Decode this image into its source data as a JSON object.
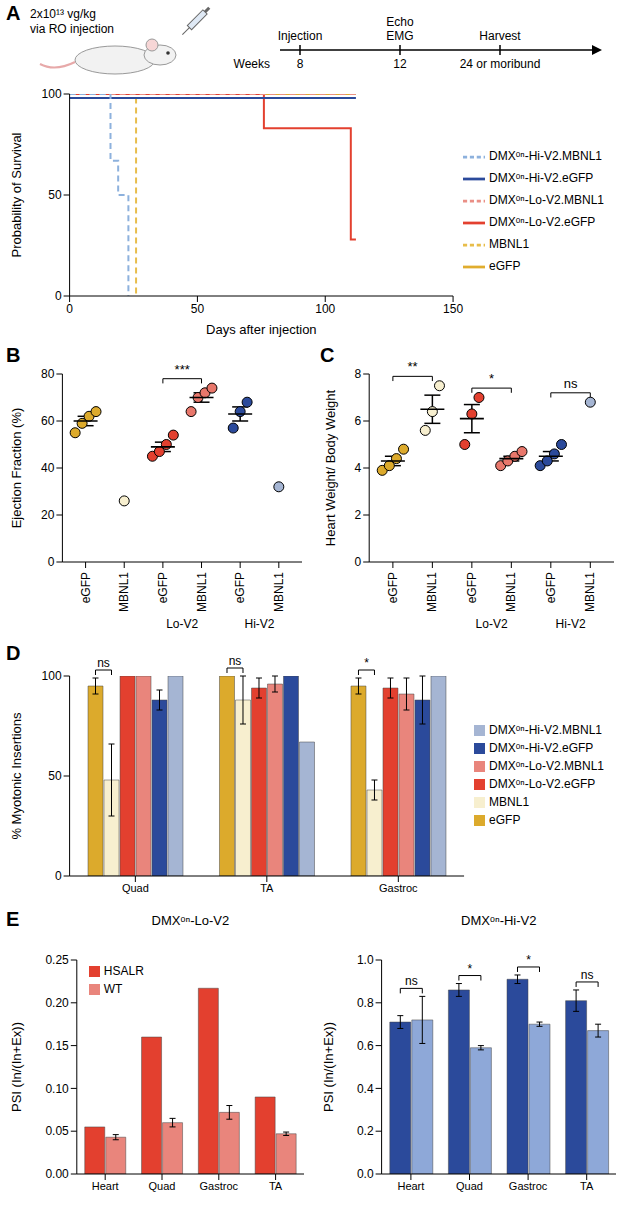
{
  "schematic": {
    "panel": "A",
    "dose": "2x10¹³ vg/kg",
    "route": "via RO injection",
    "axis_label": "Weeks",
    "events": [
      {
        "label": [
          "Injection"
        ],
        "time": "8"
      },
      {
        "label": [
          "Echo",
          "EMG"
        ],
        "time": "12"
      },
      {
        "label": [
          "Harvest"
        ],
        "time": "24 or moribund"
      }
    ]
  },
  "chart_data": [
    {
      "type": "line",
      "x_label": "Days after injection",
      "y_label": "Probability of Survival",
      "xlim": [
        0,
        150
      ],
      "xticks": [
        0,
        50,
        100,
        150
      ],
      "ylim": [
        0,
        100
      ],
      "yticks": [
        0,
        50,
        100
      ],
      "legend": "right",
      "series": [
        {
          "name": "eGFP",
          "color": "#e0ad2e",
          "line_style": "solid",
          "x": [
            0,
            112
          ],
          "values": [
            100,
            100
          ]
        },
        {
          "name": "MBNL1",
          "color": "#e8bd4a",
          "line_style": "dashed",
          "x": [
            0,
            26
          ],
          "values": [
            100,
            0
          ]
        },
        {
          "name": "DMXᵒⁿ-Lo-V2.eGFP",
          "color": "#e3402f",
          "line_style": "solid",
          "x": [
            0,
            76,
            110,
            112
          ],
          "values": [
            100,
            83,
            28,
            28
          ]
        },
        {
          "name": "DMXᵒⁿ-Lo-V2.MBNL1",
          "color": "#ea8f86",
          "line_style": "dashed",
          "x": [
            0,
            112
          ],
          "values": [
            100,
            100
          ]
        },
        {
          "name": "DMXᵒⁿ-Hi-V2.eGFP",
          "color": "#2b4a9b",
          "line_style": "solid",
          "x": [
            0,
            112
          ],
          "values": [
            98,
            98
          ]
        },
        {
          "name": "DMXᵒⁿ-Hi-V2.MBNL1",
          "color": "#8db1dd",
          "line_style": "dashed",
          "x": [
            0,
            16,
            19,
            23
          ],
          "values": [
            100,
            67,
            50,
            0
          ]
        }
      ]
    },
    {
      "panel": "B",
      "type": "scatter",
      "y_label": "Ejection Fraction (%)",
      "ylim": [
        0,
        80
      ],
      "yticks": [
        0,
        20,
        40,
        60,
        80
      ],
      "categories": [
        "eGFP",
        "MBNL1",
        "eGFP",
        "MBNL1",
        "eGFP",
        "MBNL1"
      ],
      "colors": [
        "#dcaa2c",
        "#f7efcf",
        "#e3402f",
        "#e8776b",
        "#2b4a9b",
        "#a5b5d3"
      ],
      "points": [
        [
          55,
          59,
          62,
          64
        ],
        [
          26
        ],
        [
          45,
          47,
          50,
          54
        ],
        [
          64,
          70,
          72,
          74
        ],
        [
          57,
          64,
          68
        ],
        [
          32
        ]
      ],
      "means": [
        60,
        null,
        49,
        70,
        63,
        null
      ],
      "errors": [
        2,
        null,
        2,
        2,
        3,
        null
      ],
      "groups": [
        {
          "label": "Lo-V2",
          "categories": [
            2,
            3
          ]
        },
        {
          "label": "Hi-V2",
          "categories": [
            4,
            5
          ]
        }
      ],
      "annotations": [
        {
          "text": "***",
          "between": [
            2,
            3
          ]
        }
      ]
    },
    {
      "panel": "C",
      "type": "scatter",
      "y_label": "Heart Weight/ Body Weight",
      "ylim": [
        0,
        8
      ],
      "yticks": [
        0,
        2,
        4,
        6,
        8
      ],
      "categories": [
        "eGFP",
        "MBNL1",
        "eGFP",
        "MBNL1",
        "eGFP",
        "MBNL1"
      ],
      "colors": [
        "#dcaa2c",
        "#f7efcf",
        "#e3402f",
        "#e8776b",
        "#2b4a9b",
        "#a5b5d3"
      ],
      "points": [
        [
          3.9,
          4.1,
          4.4,
          4.8
        ],
        [
          5.6,
          6.4,
          7.5
        ],
        [
          5.0,
          6.3,
          7.0
        ],
        [
          4.1,
          4.3,
          4.5,
          4.7
        ],
        [
          4.1,
          4.3,
          4.6,
          5.0
        ],
        [
          6.8
        ]
      ],
      "means": [
        4.3,
        6.5,
        6.1,
        4.4,
        4.5,
        null
      ],
      "errors": [
        0.2,
        0.6,
        0.6,
        0.1,
        0.2,
        null
      ],
      "groups": [
        {
          "label": "Lo-V2",
          "categories": [
            2,
            3
          ]
        },
        {
          "label": "Hi-V2",
          "categories": [
            4,
            5
          ]
        }
      ],
      "annotations": [
        {
          "text": "**",
          "between": [
            0,
            1
          ]
        },
        {
          "text": "*",
          "between": [
            2,
            3
          ]
        },
        {
          "text": "ns",
          "between": [
            4,
            5
          ]
        }
      ]
    },
    {
      "panel": "D",
      "type": "bar",
      "y_label": "% Myotonic Insertions",
      "ylim": [
        0,
        100
      ],
      "yticks": [
        0,
        50,
        100
      ],
      "legend": "right",
      "categories": [
        "Quad",
        "TA",
        "Gastroc"
      ],
      "series": [
        {
          "name": "eGFP",
          "color": "#dcaa2c",
          "values": [
            95,
            100,
            95
          ],
          "errors": [
            4,
            0,
            4
          ]
        },
        {
          "name": "MBNL1",
          "color": "#f7efcf",
          "values": [
            48,
            88,
            43
          ],
          "errors": [
            18,
            12,
            5
          ]
        },
        {
          "name": "DMXᵒⁿ-Lo-V2.eGFP",
          "color": "#e3402f",
          "values": [
            100,
            94,
            94
          ],
          "errors": [
            0,
            5,
            5
          ]
        },
        {
          "name": "DMXᵒⁿ-Lo-V2.MBNL1",
          "color": "#e9857c",
          "values": [
            100,
            96,
            91
          ],
          "errors": [
            0,
            4,
            8
          ]
        },
        {
          "name": "DMXᵒⁿ-Hi-V2.eGFP",
          "color": "#2b4a9b",
          "values": [
            88,
            100,
            88
          ],
          "errors": [
            5,
            0,
            12
          ]
        },
        {
          "name": "DMXᵒⁿ-Hi-V2.MBNL1",
          "color": "#a5b5d3",
          "values": [
            100,
            67,
            100
          ],
          "errors": [
            0,
            0,
            0
          ]
        }
      ],
      "annotations": [
        {
          "text": "ns",
          "category": 0,
          "between": [
            0,
            1
          ]
        },
        {
          "text": "ns",
          "category": 1,
          "between": [
            0,
            1
          ]
        },
        {
          "text": "*",
          "category": 2,
          "between": [
            0,
            1
          ]
        }
      ]
    },
    {
      "panel": "E",
      "type": "bar",
      "title": "DMXᵒⁿ-Lo-V2",
      "y_label": "PSI (In/(In+Ex))",
      "legend": "top-left",
      "ylim": [
        0,
        0.25
      ],
      "yticks": [
        {
          "value": 0,
          "label": "0.00"
        },
        {
          "value": 0.05,
          "label": "0.05"
        },
        {
          "value": 0.1,
          "label": "0.10"
        },
        {
          "value": 0.15,
          "label": "0.15"
        },
        {
          "value": 0.2,
          "label": "0.20"
        },
        {
          "value": 0.25,
          "label": "0.25"
        }
      ],
      "categories": [
        "Heart",
        "Quad",
        "Gastroc",
        "TA"
      ],
      "series": [
        {
          "name": "HSALR",
          "color": "#e3402f",
          "values": [
            0.055,
            0.16,
            0.217,
            0.09
          ]
        },
        {
          "name": "WT",
          "color": "#e9857c",
          "values": [
            0.043,
            0.06,
            0.072,
            0.047
          ],
          "errors": [
            0.003,
            0.005,
            0.008,
            0.002
          ]
        }
      ]
    },
    {
      "type": "bar",
      "title": "DMXᵒⁿ-Hi-V2",
      "y_label": "PSI (In/(In+Ex))",
      "ylim": [
        0,
        1
      ],
      "yticks": [
        {
          "value": 0,
          "label": "0.0"
        },
        {
          "value": 0.2,
          "label": "0.2"
        },
        {
          "value": 0.4,
          "label": "0.4"
        },
        {
          "value": 0.6,
          "label": "0.6"
        },
        {
          "value": 0.8,
          "label": "0.8"
        },
        {
          "value": 1,
          "label": "1.0"
        }
      ],
      "categories": [
        "Heart",
        "Quad",
        "Gastroc",
        "TA"
      ],
      "series": [
        {
          "color": "#2b4a9b",
          "values": [
            0.71,
            0.86,
            0.91,
            0.81
          ],
          "errors": [
            0.03,
            0.03,
            0.02,
            0.05
          ]
        },
        {
          "color": "#8ea8d8",
          "values": [
            0.72,
            0.59,
            0.7,
            0.67
          ],
          "errors": [
            0.11,
            0.01,
            0.01,
            0.03
          ]
        }
      ],
      "annotations": [
        {
          "text": "ns",
          "category": 0,
          "between": [
            0,
            1
          ]
        },
        {
          "text": "*",
          "category": 1,
          "between": [
            0,
            1
          ]
        },
        {
          "text": "*",
          "category": 2,
          "between": [
            0,
            1
          ]
        },
        {
          "text": "ns",
          "category": 3,
          "between": [
            0,
            1
          ]
        }
      ]
    }
  ]
}
